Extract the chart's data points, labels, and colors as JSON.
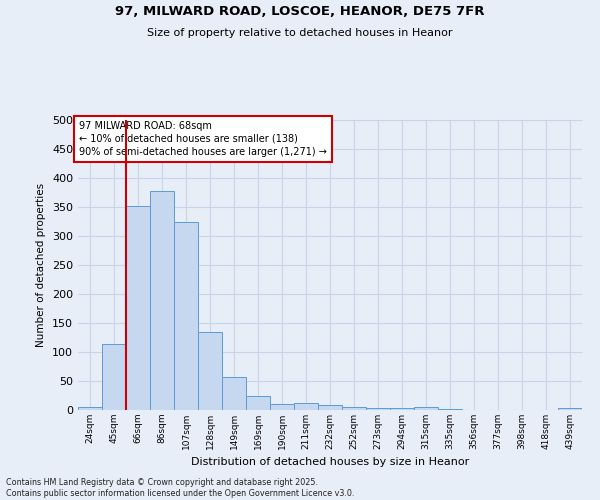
{
  "title_line1": "97, MILWARD ROAD, LOSCOE, HEANOR, DE75 7FR",
  "title_line2": "Size of property relative to detached houses in Heanor",
  "xlabel": "Distribution of detached houses by size in Heanor",
  "ylabel": "Number of detached properties",
  "categories": [
    "24sqm",
    "45sqm",
    "66sqm",
    "86sqm",
    "107sqm",
    "128sqm",
    "149sqm",
    "169sqm",
    "190sqm",
    "211sqm",
    "232sqm",
    "252sqm",
    "273sqm",
    "294sqm",
    "315sqm",
    "335sqm",
    "356sqm",
    "377sqm",
    "398sqm",
    "418sqm",
    "439sqm"
  ],
  "values": [
    5,
    113,
    352,
    378,
    325,
    135,
    57,
    24,
    11,
    12,
    8,
    5,
    3,
    3,
    5,
    1,
    0,
    0,
    0,
    0,
    3
  ],
  "bar_color": "#c5d8f0",
  "bar_edge_color": "#5b9bd5",
  "reference_line_x": 1.5,
  "reference_line_color": "#cc0000",
  "annotation_text_line1": "97 MILWARD ROAD: 68sqm",
  "annotation_text_line2": "← 10% of detached houses are smaller (138)",
  "annotation_text_line3": "90% of semi-detached houses are larger (1,271) →",
  "annotation_box_color": "#ffffff",
  "annotation_box_edge_color": "#cc0000",
  "ylim": [
    0,
    500
  ],
  "yticks": [
    0,
    50,
    100,
    150,
    200,
    250,
    300,
    350,
    400,
    450,
    500
  ],
  "grid_color": "#c8d4e8",
  "footer_line1": "Contains HM Land Registry data © Crown copyright and database right 2025.",
  "footer_line2": "Contains public sector information licensed under the Open Government Licence v3.0.",
  "bg_color": "#e8eef8"
}
